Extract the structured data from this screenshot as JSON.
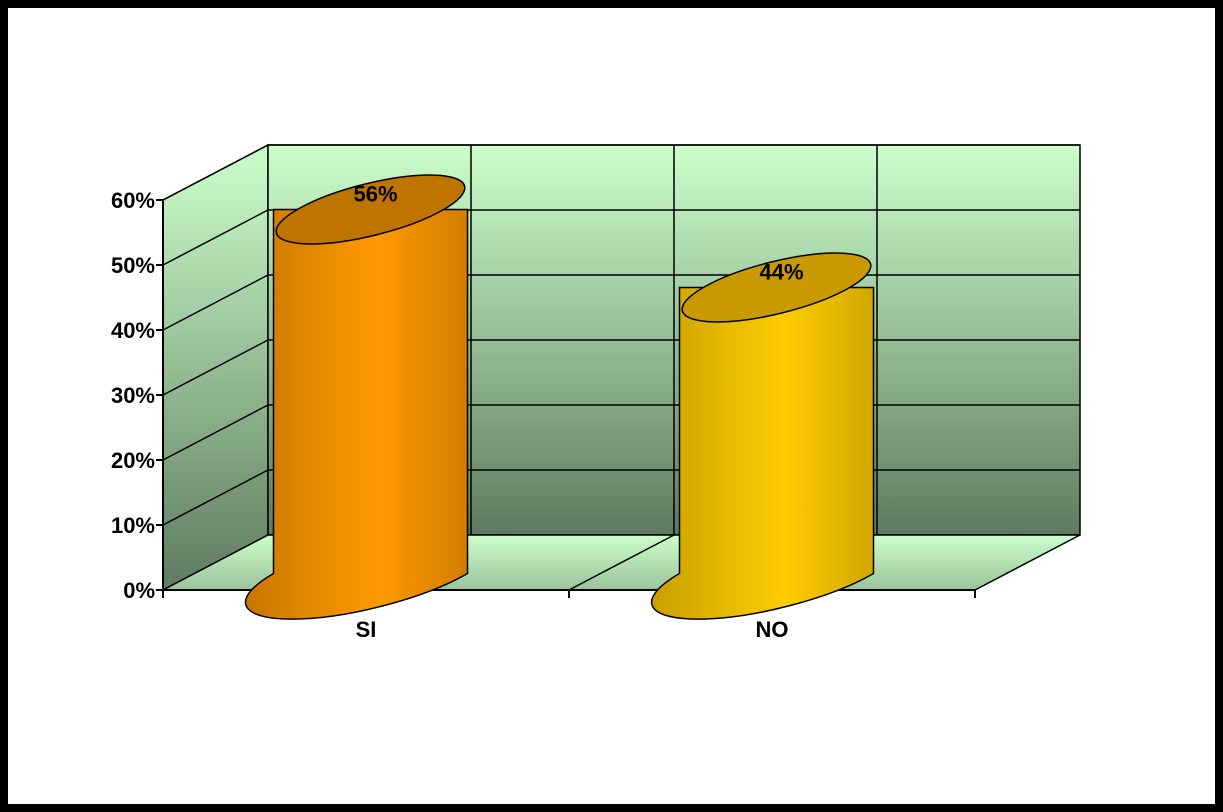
{
  "chart_data": {
    "type": "bar",
    "style": "3d-cylinder",
    "categories": [
      "SI",
      "NO"
    ],
    "values": [
      56,
      44
    ],
    "data_labels": [
      "56%",
      "44%"
    ],
    "ylim": [
      0,
      60
    ],
    "yticks": [
      0,
      10,
      20,
      30,
      40,
      50,
      60
    ],
    "ytick_labels": [
      "0%",
      "10%",
      "20%",
      "30%",
      "40%",
      "50%",
      "60%"
    ],
    "grid": true,
    "legend": "none",
    "colors": {
      "bars": [
        "#FF9900",
        "#FFCC00"
      ],
      "bar_tops": [
        "#C07400",
        "#C89A00"
      ],
      "wall_top": "#CCFFCC",
      "wall_bottom": "#5F7A5F",
      "floor": "#CCFFCC"
    }
  }
}
